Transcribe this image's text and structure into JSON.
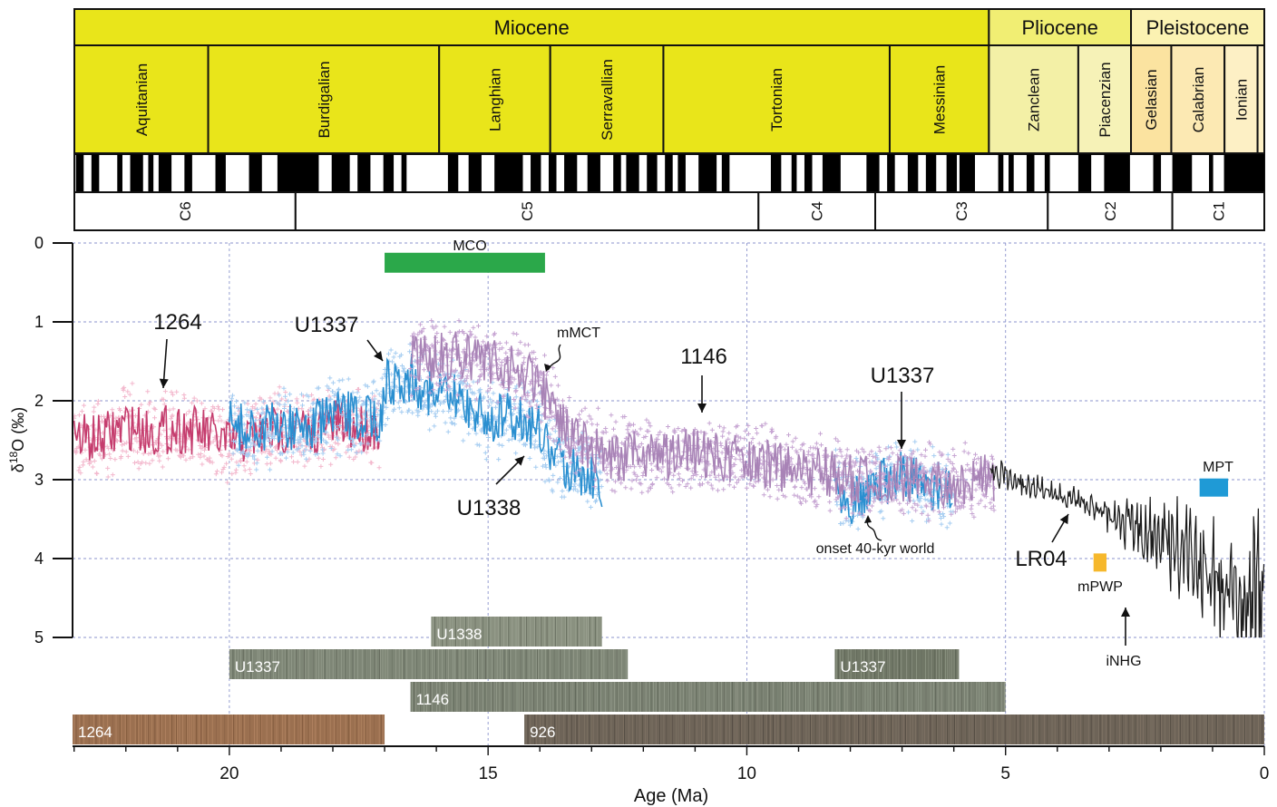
{
  "chart_data": {
    "type": "line",
    "xlabel": "Age (Ma)",
    "ylabel": "δ18O (‰)",
    "ylabel_parts": {
      "delta": "δ",
      "superscript": "18",
      "rest": "O (‰)"
    },
    "xlim": [
      23.03,
      0
    ],
    "ylim": [
      5,
      0
    ],
    "y_reversed": true,
    "x_reversed": true,
    "grid": true,
    "x_ticks": [
      20,
      15,
      10,
      5,
      0
    ],
    "x_tick_labels": [
      "20",
      "15",
      "10",
      "5",
      "0"
    ],
    "y_ticks": [
      0,
      1,
      2,
      3,
      4,
      5
    ],
    "y_tick_labels": [
      "0",
      "1",
      "2",
      "3",
      "4",
      "5"
    ],
    "timescale": {
      "epochs": [
        {
          "name": "Miocene",
          "start": 23.03,
          "end": 5.33,
          "color": "#e9e51a"
        },
        {
          "name": "Pliocene",
          "start": 5.33,
          "end": 2.58,
          "color": "#f1ee73"
        },
        {
          "name": "Pleistocene",
          "start": 2.58,
          "end": 0,
          "color": "#fbf2b2"
        }
      ],
      "stages": [
        {
          "name": "Aquitanian",
          "start": 23.03,
          "end": 20.44,
          "color": "#e9e51a"
        },
        {
          "name": "Burdigalian",
          "start": 20.44,
          "end": 15.97,
          "color": "#e9e51a"
        },
        {
          "name": "Langhian",
          "start": 15.97,
          "end": 13.82,
          "color": "#e9e51a"
        },
        {
          "name": "Serravallian",
          "start": 13.82,
          "end": 11.63,
          "color": "#e9e51a"
        },
        {
          "name": "Tortonian",
          "start": 11.63,
          "end": 7.25,
          "color": "#e9e51a"
        },
        {
          "name": "Messinian",
          "start": 7.25,
          "end": 5.33,
          "color": "#e9e51a"
        },
        {
          "name": "Zanclean",
          "start": 5.33,
          "end": 3.6,
          "color": "#f3f0a6"
        },
        {
          "name": "Piacenzian",
          "start": 3.6,
          "end": 2.58,
          "color": "#f6f2b7"
        },
        {
          "name": "Gelasian",
          "start": 2.58,
          "end": 1.8,
          "color": "#fbe3a0"
        },
        {
          "name": "Calabrian",
          "start": 1.8,
          "end": 0.77,
          "color": "#fce9b3"
        },
        {
          "name": "Ionian",
          "start": 0.77,
          "end": 0.13,
          "color": "#fdf0c5"
        }
      ],
      "chrons": [
        {
          "name": "C6",
          "start": 23.03,
          "end": 18.75
        },
        {
          "name": "C5",
          "start": 18.75,
          "end": 9.79
        },
        {
          "name": "C4",
          "start": 9.79,
          "end": 7.53
        },
        {
          "name": "C3",
          "start": 7.53,
          "end": 4.19
        },
        {
          "name": "C2",
          "start": 4.19,
          "end": 1.78
        },
        {
          "name": "C1",
          "start": 1.78,
          "end": 0
        }
      ],
      "polarity_normal": [
        [
          23.0,
          22.85
        ],
        [
          22.7,
          22.55
        ],
        [
          22.2,
          22.1
        ],
        [
          21.95,
          21.7
        ],
        [
          21.6,
          21.5
        ],
        [
          21.4,
          21.15
        ],
        [
          20.9,
          20.75
        ],
        [
          20.3,
          20.1
        ],
        [
          19.65,
          19.4
        ],
        [
          19.1,
          18.3
        ],
        [
          18.05,
          17.7
        ],
        [
          17.55,
          17.3
        ],
        [
          17.05,
          16.85
        ],
        [
          16.7,
          16.6
        ],
        [
          15.8,
          15.6
        ],
        [
          15.4,
          15.15
        ],
        [
          14.9,
          14.35
        ],
        [
          14.2,
          14.0
        ],
        [
          13.85,
          13.7
        ],
        [
          13.55,
          13.3
        ],
        [
          13.1,
          12.85
        ],
        [
          12.6,
          12.45
        ],
        [
          12.35,
          12.1
        ],
        [
          11.95,
          11.75
        ],
        [
          11.6,
          11.45
        ],
        [
          11.35,
          11.2
        ],
        [
          10.95,
          10.6
        ],
        [
          10.5,
          10.35
        ],
        [
          9.55,
          9.35
        ],
        [
          9.15,
          9.05
        ],
        [
          8.9,
          8.75
        ],
        [
          8.55,
          8.2
        ],
        [
          7.7,
          7.45
        ],
        [
          7.3,
          7.15
        ],
        [
          6.9,
          6.7
        ],
        [
          6.55,
          6.35
        ],
        [
          6.15,
          5.95
        ],
        [
          5.9,
          5.6
        ],
        [
          5.15,
          5.05
        ],
        [
          4.95,
          4.85
        ],
        [
          4.6,
          4.45
        ],
        [
          4.25,
          4.15
        ],
        [
          3.6,
          3.35
        ],
        [
          3.1,
          2.6
        ],
        [
          2.15,
          2.0
        ],
        [
          1.78,
          1.4
        ],
        [
          1.07,
          0.99
        ],
        [
          0.78,
          0.0
        ]
      ]
    },
    "annotations": [
      {
        "text": "1264",
        "x": 21.3,
        "y": 2.0,
        "target": 1.7
      },
      {
        "text": "U1337",
        "x": 17.6,
        "y": 1.1,
        "target": 1.5
      },
      {
        "text": "mMCT",
        "x": 13.6,
        "y": 1.3
      },
      {
        "text": "1146",
        "x": 10.7,
        "y": 1.6,
        "target": 2.1
      },
      {
        "text": "U1337",
        "x": 7.1,
        "y": 1.9,
        "target": 2.7
      },
      {
        "text": "U1338",
        "x": 14.5,
        "y": 3.8,
        "target": 2.7
      },
      {
        "text": "onset 40-kyr world",
        "x": 7.5,
        "y": 3.5
      },
      {
        "text": "LR04",
        "x": 4.4,
        "y": 4.0,
        "target": 3.5
      },
      {
        "text": "mPWP",
        "x": 3.15,
        "y": 4.05
      },
      {
        "text": "iNHG",
        "x": 2.6,
        "y": 5.0,
        "target": 4.7
      },
      {
        "text": "MCO",
        "x": 15.5,
        "y": 0.25
      },
      {
        "text": "MPT",
        "x": 1.0,
        "y": 2.9
      }
    ],
    "events": [
      {
        "name": "MCO",
        "start": 17.0,
        "end": 13.9,
        "y": 0.25,
        "color": "#2ba84a"
      },
      {
        "name": "MPT",
        "start": 1.25,
        "end": 0.7,
        "y": 3.1,
        "color": "#1f9ad6"
      },
      {
        "name": "mPWP",
        "start": 3.3,
        "end": 3.05,
        "y": 4.05,
        "color": "#f6b82c"
      }
    ],
    "series": [
      {
        "name": "1264",
        "color": "#c53d6e",
        "point_color": "#f3b8cd",
        "x": [
          23.0,
          22.5,
          22.0,
          21.5,
          21.0,
          20.5,
          20.0,
          19.5,
          19.0,
          18.5,
          18.0,
          17.5,
          17.1
        ],
        "y": [
          2.45,
          2.5,
          2.3,
          2.4,
          2.35,
          2.4,
          2.55,
          2.45,
          2.35,
          2.4,
          2.3,
          2.35,
          2.3
        ]
      },
      {
        "name": "U1337",
        "color": "#2a8fd0",
        "point_color": "#a6cdf1",
        "x": [
          20.0,
          19.5,
          19.0,
          18.5,
          18.0,
          17.5,
          17.05,
          17.0,
          16.5,
          16.0,
          15.5,
          15.0,
          14.5,
          14.0,
          13.8,
          13.5,
          13.0,
          12.8
        ],
        "y": [
          2.3,
          2.4,
          2.3,
          2.35,
          2.2,
          2.2,
          2.2,
          1.8,
          1.7,
          1.95,
          2.0,
          2.25,
          2.2,
          2.35,
          2.7,
          2.8,
          2.95,
          3.05
        ]
      },
      {
        "name": "U1337",
        "color": "#2a8fd0",
        "point_color": "#a6cdf1",
        "x": [
          8.3,
          8.0,
          7.5,
          7.0,
          6.5,
          6.0
        ],
        "y": [
          3.0,
          3.25,
          3.05,
          2.95,
          3.1,
          3.2
        ]
      },
      {
        "name": "U1338",
        "color": "#a883b6",
        "point_color": "#c7a6d3",
        "x": [
          16.5,
          16.0,
          15.5,
          15.0,
          14.5,
          14.0,
          13.8,
          13.5,
          13.0,
          12.5,
          12.0,
          11.5,
          11.0,
          10.5,
          10.0,
          9.5,
          9.0,
          8.5,
          8.0,
          7.5,
          7.0,
          6.5,
          6.0,
          5.5,
          5.2
        ],
        "y": [
          1.5,
          1.45,
          1.4,
          1.5,
          1.6,
          1.8,
          2.05,
          2.4,
          2.6,
          2.7,
          2.7,
          2.7,
          2.65,
          2.7,
          2.75,
          2.8,
          2.9,
          2.9,
          3.0,
          3.0,
          3.0,
          3.05,
          3.1,
          3.0,
          3.0
        ]
      },
      {
        "name": "LR04",
        "color": "#1b1b1b",
        "x": [
          5.3,
          5.0,
          4.5,
          4.0,
          3.5,
          3.0,
          2.5,
          2.0,
          1.5,
          1.0,
          0.5,
          0.0
        ],
        "y": [
          2.9,
          2.95,
          3.1,
          3.2,
          3.3,
          3.45,
          3.6,
          3.75,
          3.95,
          4.2,
          4.45,
          4.5
        ]
      }
    ],
    "cores": [
      {
        "name": "U1338",
        "start": 16.1,
        "end": 12.8,
        "color": "#8a9180"
      },
      {
        "name": "U1337",
        "start": 20.0,
        "end": 12.3,
        "color": "#7e8676"
      },
      {
        "name": "U1337",
        "start": 8.3,
        "end": 5.9,
        "color": "#6f7665"
      },
      {
        "name": "1146",
        "start": 16.5,
        "end": 5.0,
        "color": "#7a8172"
      },
      {
        "name": "1264",
        "start": 23.03,
        "end": 17.0,
        "color": "#9b7050"
      },
      {
        "name": "926",
        "start": 14.3,
        "end": 0.0,
        "color": "#6e6458"
      }
    ]
  }
}
